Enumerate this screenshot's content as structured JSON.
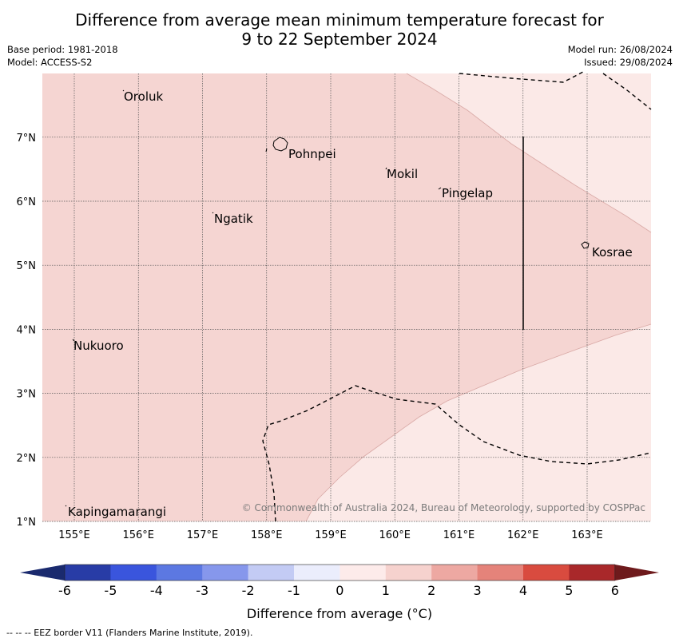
{
  "header": {
    "title_line1": "Difference from average mean minimum temperature forecast for",
    "title_line2": "9 to 22 September 2024",
    "base_period": "Base period: 1981-2018",
    "model": "Model: ACCESS-S2",
    "model_run": "Model run: 26/08/2024",
    "issued": "Issued: 29/08/2024"
  },
  "map": {
    "lon_range": [
      154.5,
      164.0
    ],
    "lat_range": [
      1.0,
      8.0
    ],
    "lat_ticks": [
      "1°N",
      "2°N",
      "3°N",
      "4°N",
      "5°N",
      "6°N",
      "7°N"
    ],
    "lon_ticks": [
      "155°E",
      "156°E",
      "157°E",
      "158°E",
      "159°E",
      "160°E",
      "161°E",
      "162°E",
      "163°E"
    ],
    "places": [
      "Oroluk",
      "Pohnpei",
      "Mokil",
      "Pingelap",
      "Ngatik",
      "Kosrae",
      "Nukuoro",
      "Kapingamarangi"
    ],
    "zone_colors": {
      "zero_to_one": "#fbe9e7",
      "one_to_two": "#f5d5d2"
    },
    "copyright": "© Commonwealth of Australia 2024, Bureau of Meteorology, supported by COSPPac"
  },
  "colorbar": {
    "ticks": [
      "-6",
      "-5",
      "-4",
      "-3",
      "-2",
      "-1",
      "0",
      "1",
      "2",
      "3",
      "4",
      "5",
      "6"
    ],
    "colors": [
      "#283ca6",
      "#3a55dd",
      "#5c78e2",
      "#8697ec",
      "#c3cbf4",
      "#ebedfc",
      "#fdebea",
      "#f6d2ce",
      "#eda8a2",
      "#e5837a",
      "#d94b3f",
      "#a9282a"
    ],
    "low_extend_color": "#1a2a6e",
    "high_extend_color": "#6e1a1c",
    "label": "Difference from average (°C)"
  },
  "footnote": "-- -- -- EEZ border V11 (Flanders Marine Institute, 2019)."
}
